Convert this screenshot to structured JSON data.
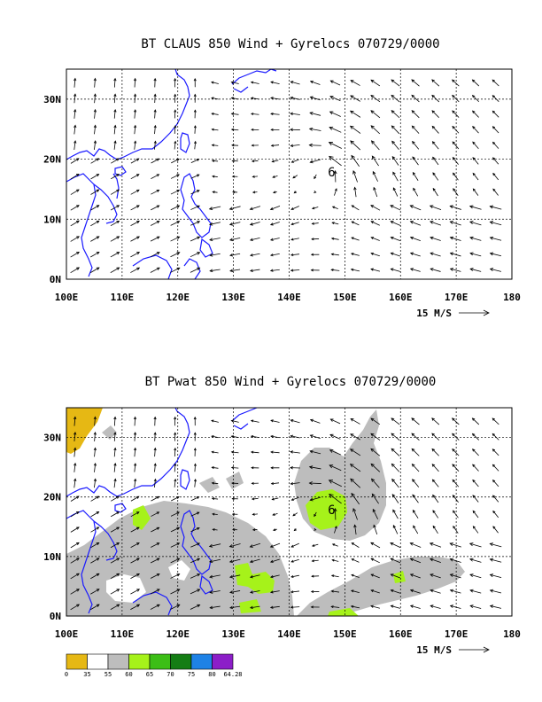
{
  "panels": [
    {
      "title": "BT CLAUS 850 Wind + Gyrelocs 070729/0000",
      "x_ticks": [
        "100E",
        "110E",
        "120E",
        "130E",
        "140E",
        "150E",
        "160E",
        "170E",
        "180"
      ],
      "y_ticks": [
        "0N",
        "10N",
        "20N",
        "30N"
      ],
      "vector_ref": "15 M/S",
      "gyre_marker": "6"
    },
    {
      "title": "BT Pwat 850 Wind + Gyrelocs 070729/0000",
      "x_ticks": [
        "100E",
        "110E",
        "120E",
        "130E",
        "140E",
        "150E",
        "160E",
        "170E",
        "180"
      ],
      "y_ticks": [
        "0N",
        "10N",
        "20N",
        "30N"
      ],
      "vector_ref": "15 M/S",
      "gyre_marker": "6"
    }
  ],
  "legend": {
    "labels": [
      "0",
      "35",
      "55",
      "60",
      "65",
      "70",
      "75",
      "80",
      "64.28"
    ],
    "colors": [
      "#e6b814",
      "#ffffff",
      "#bdbdbd",
      "#a6f21a",
      "#3cbe16",
      "#147d14",
      "#1e82e6",
      "#8c1ec8"
    ]
  },
  "chart_data": [
    {
      "type": "vector-field",
      "title": "BT CLAUS 850 Wind + Gyrelocs 070729/0000",
      "xlim": [
        100,
        180
      ],
      "ylim": [
        0,
        35
      ],
      "gyre_location": {
        "lon": 147,
        "lat": 18,
        "label": "6"
      }
    },
    {
      "type": "vector-field",
      "title": "BT Pwat 850 Wind + Gyrelocs 070729/0000",
      "xlim": [
        100,
        180
      ],
      "ylim": [
        0,
        35
      ],
      "gyre_location": {
        "lon": 147,
        "lat": 18,
        "label": "6"
      }
    }
  ]
}
